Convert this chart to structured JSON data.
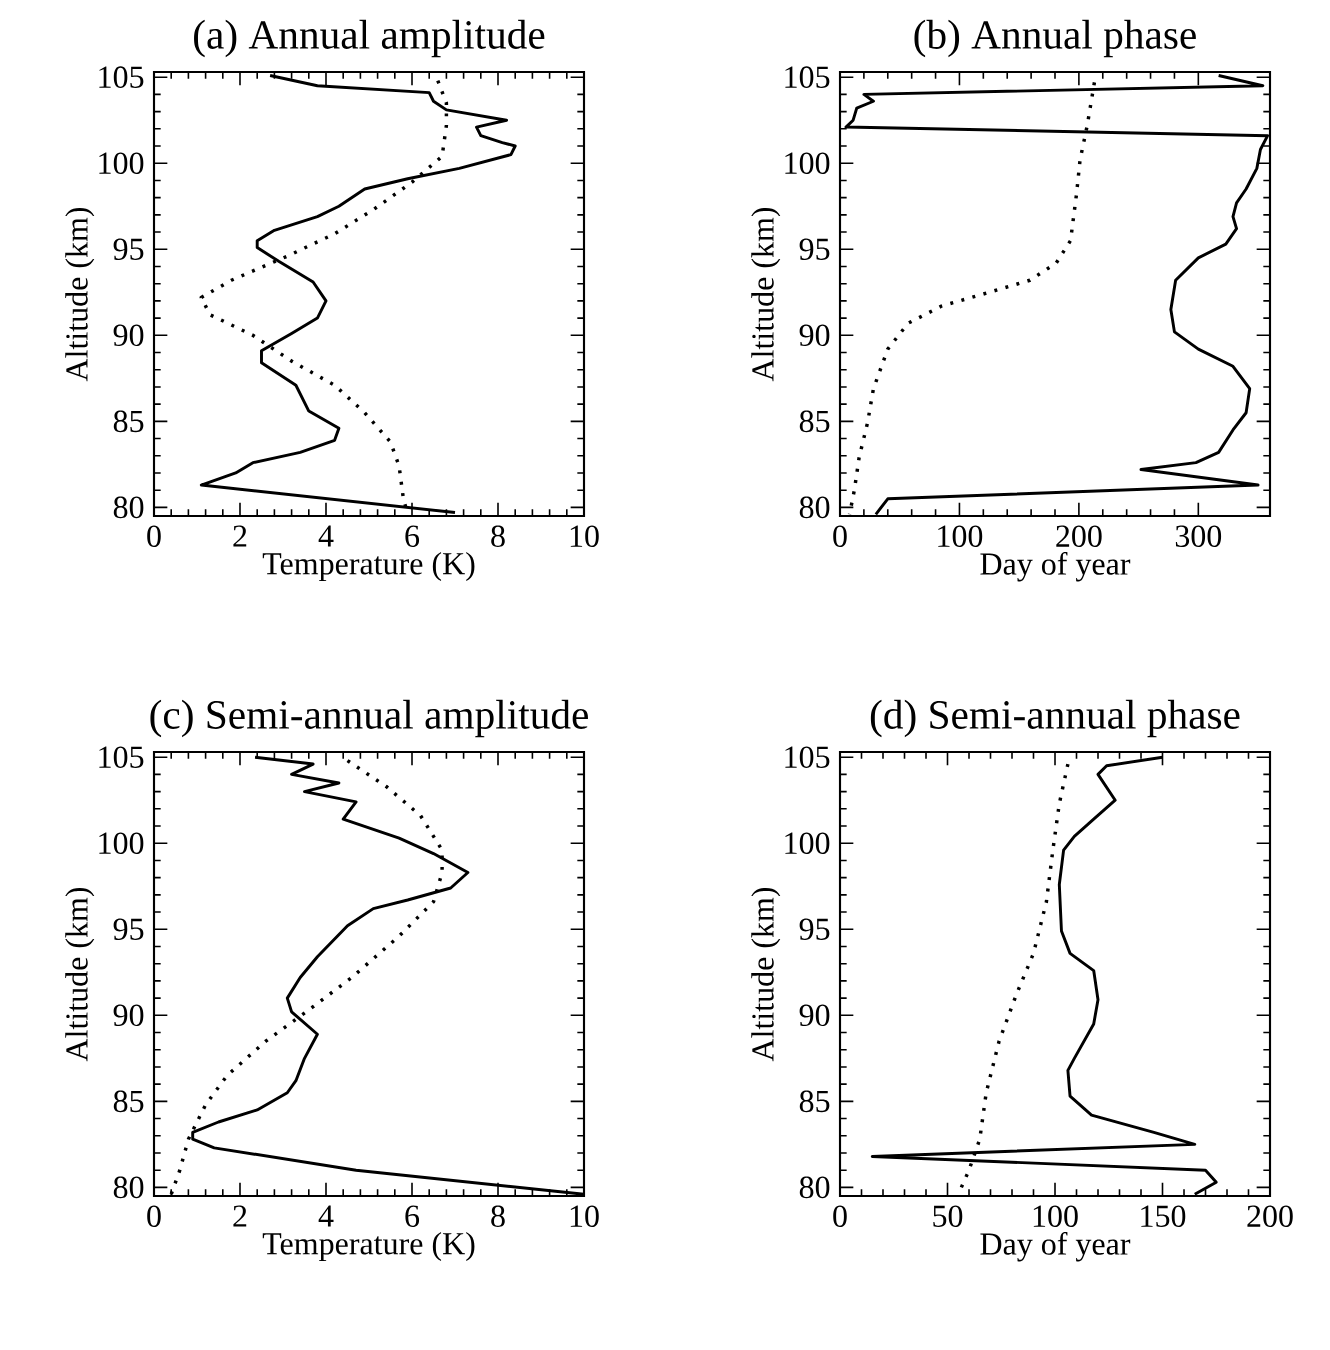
{
  "chart_data": [
    {
      "type": "line",
      "title": "(a) Annual amplitude",
      "xlabel": "Temperature (K)",
      "ylabel": "Altitude (km)",
      "xlim": [
        0,
        10
      ],
      "ylim": [
        79.5,
        105.3
      ],
      "xticks": [
        0,
        2,
        4,
        6,
        8,
        10
      ],
      "yticks": [
        80,
        85,
        90,
        95,
        100,
        105
      ],
      "series": [
        {
          "color": "#000000",
          "line_style": "solid",
          "x": [
            2.7,
            3.8,
            6.4,
            6.5,
            6.8,
            8.2,
            7.5,
            7.6,
            8.1,
            8.4,
            8.3,
            7.1,
            5.9,
            4.9,
            4.3,
            3.8,
            2.8,
            2.4,
            2.4,
            2.9,
            3.7,
            4.0,
            3.8,
            3.2,
            2.5,
            2.5,
            3.3,
            3.6,
            4.3,
            4.2,
            3.4,
            2.3,
            1.9,
            1.1,
            7.0
          ],
          "values": [
            105.1,
            104.5,
            104.1,
            103.6,
            103.1,
            102.5,
            102.1,
            101.6,
            101.2,
            101.0,
            100.5,
            99.7,
            99.1,
            98.5,
            97.5,
            96.9,
            96.1,
            95.5,
            95.1,
            94.3,
            93.1,
            92.0,
            91.0,
            90.1,
            89.1,
            88.4,
            87.1,
            85.6,
            84.6,
            83.9,
            83.2,
            82.6,
            82.0,
            81.3,
            79.7
          ]
        },
        {
          "color": "#000000",
          "line_style": "dotted",
          "x": [
            6.6,
            6.8,
            6.8,
            6.7,
            6.0,
            5.1,
            4.2,
            3.1,
            1.8,
            1.1,
            1.3,
            2.3,
            3.2,
            4.2,
            4.9,
            5.5,
            5.7,
            5.8,
            5.9
          ],
          "values": [
            104.8,
            103.5,
            102.2,
            100.4,
            98.9,
            97.3,
            95.9,
            94.6,
            93.2,
            92.2,
            91.2,
            90.0,
            88.5,
            87.1,
            85.5,
            83.8,
            82.4,
            80.5,
            79.6
          ]
        }
      ]
    },
    {
      "type": "line",
      "title": "(b) Annual phase",
      "xlabel": "Day of year",
      "ylabel": "Altitude (km)",
      "xlim": [
        0,
        360
      ],
      "ylim": [
        79.5,
        105.3
      ],
      "xticks": [
        0,
        100,
        200,
        300
      ],
      "yticks": [
        80,
        85,
        90,
        95,
        100,
        105
      ],
      "series": [
        {
          "color": "#000000",
          "line_style": "solid",
          "x": [
            317,
            354,
            20,
            28,
            14,
            11,
            5,
            358,
            352,
            349,
            340,
            332,
            329,
            332,
            323,
            300,
            281,
            277,
            280,
            300,
            329,
            343,
            340,
            329,
            317,
            298,
            252,
            350,
            40,
            30
          ],
          "values": [
            105.1,
            104.5,
            104.0,
            103.6,
            103.2,
            102.5,
            102.1,
            101.6,
            100.8,
            99.7,
            98.5,
            97.7,
            96.9,
            96.2,
            95.3,
            94.5,
            93.2,
            91.5,
            90.2,
            89.2,
            88.2,
            86.9,
            85.5,
            84.5,
            83.2,
            82.6,
            82.2,
            81.3,
            80.5,
            79.6
          ]
        },
        {
          "color": "#000000",
          "line_style": "dotted",
          "x": [
            213,
            207,
            201,
            198,
            193,
            181,
            159,
            125,
            85,
            57,
            40,
            28,
            23,
            16,
            12,
            8
          ],
          "values": [
            104.7,
            102.2,
            100.2,
            98.2,
            95.5,
            94.2,
            93.2,
            92.5,
            91.7,
            90.7,
            89.2,
            86.9,
            84.9,
            82.9,
            81.0,
            79.6
          ]
        }
      ]
    },
    {
      "type": "line",
      "title": "(c) Semi-annual amplitude",
      "xlabel": "Temperature (K)",
      "ylabel": "Altitude (km)",
      "xlim": [
        0,
        10
      ],
      "ylim": [
        79.5,
        105.3
      ],
      "xticks": [
        0,
        2,
        4,
        6,
        8,
        10
      ],
      "yticks": [
        80,
        85,
        90,
        95,
        100,
        105
      ],
      "series": [
        {
          "color": "#000000",
          "line_style": "solid",
          "x": [
            2.35,
            3.7,
            3.2,
            4.3,
            3.5,
            4.7,
            4.4,
            5.7,
            6.5,
            7.3,
            6.9,
            5.9,
            5.1,
            4.5,
            3.8,
            3.4,
            3.1,
            3.2,
            3.8,
            3.5,
            3.3,
            3.1,
            2.4,
            1.5,
            0.9,
            0.9,
            1.4,
            4.7,
            10
          ],
          "values": [
            105.0,
            104.6,
            104.0,
            103.5,
            103.0,
            102.4,
            101.4,
            100.3,
            99.4,
            98.3,
            97.4,
            96.7,
            96.2,
            95.2,
            93.4,
            92.2,
            91.0,
            90.2,
            88.9,
            87.5,
            86.2,
            85.5,
            84.5,
            83.8,
            83.2,
            82.8,
            82.3,
            81.0,
            79.6
          ]
        },
        {
          "color": "#000000",
          "line_style": "dotted",
          "x": [
            4.5,
            5.4,
            6.2,
            6.7,
            6.7,
            6.5,
            5.7,
            4.6,
            3.7,
            2.6,
            1.7,
            1.2,
            0.8,
            0.6,
            0.4
          ],
          "values": [
            104.8,
            103.3,
            101.6,
            99.6,
            98.3,
            96.6,
            94.6,
            92.2,
            90.5,
            88.5,
            86.5,
            84.8,
            82.8,
            81.0,
            79.6
          ]
        }
      ]
    },
    {
      "type": "line",
      "title": "(d) Semi-annual phase",
      "xlabel": "Day of year",
      "ylabel": "Altitude (km)",
      "xlim": [
        0,
        200
      ],
      "ylim": [
        79.5,
        105.3
      ],
      "xticks": [
        0,
        50,
        100,
        150,
        200
      ],
      "yticks": [
        80,
        85,
        90,
        95,
        100,
        105
      ],
      "series": [
        {
          "color": "#000000",
          "line_style": "solid",
          "x": [
            150,
            124,
            120,
            128,
            118,
            109,
            104,
            102,
            103,
            107,
            118,
            120,
            118,
            109,
            106,
            107,
            117,
            146,
            165,
            15,
            170,
            175,
            165
          ],
          "values": [
            105.0,
            104.5,
            104.0,
            102.5,
            101.4,
            100.4,
            99.6,
            97.6,
            94.9,
            93.6,
            92.6,
            90.9,
            89.5,
            87.5,
            86.8,
            85.3,
            84.2,
            83.2,
            82.5,
            81.8,
            81.0,
            80.3,
            79.6
          ]
        },
        {
          "color": "#000000",
          "line_style": "dotted",
          "x": [
            106,
            102,
            99,
            96,
            90,
            82,
            74,
            68,
            65,
            60,
            55
          ],
          "values": [
            104.6,
            102.3,
            99.6,
            96.6,
            93.6,
            91.2,
            88.5,
            85.5,
            82.8,
            81.0,
            79.6
          ]
        }
      ]
    }
  ]
}
